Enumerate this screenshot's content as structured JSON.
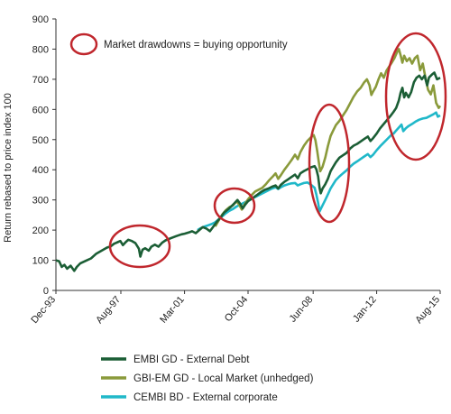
{
  "chart_data": {
    "type": "line",
    "ylabel": "Return rebased to price index 100",
    "ylim": [
      0,
      900
    ],
    "yticks": [
      0,
      100,
      200,
      300,
      400,
      500,
      600,
      700,
      800,
      900
    ],
    "xlim": [
      1993.92,
      2015.58
    ],
    "xticks": [
      {
        "label": "Dec-93",
        "value": 1993.92
      },
      {
        "label": "Aug-97",
        "value": 1997.58
      },
      {
        "label": "Mar-01",
        "value": 2001.17
      },
      {
        "label": "Oct-04",
        "value": 2004.75
      },
      {
        "label": "Jun-08",
        "value": 2008.42
      },
      {
        "label": "Jan-12",
        "value": 2012.0
      },
      {
        "label": "Aug-15",
        "value": 2015.58
      }
    ],
    "grid": false,
    "legend_position": "bottom",
    "series": [
      {
        "name": "EMBI GD - External Debt",
        "color": "#1b5e35",
        "points": [
          [
            1993.92,
            100
          ],
          [
            1994.1,
            97
          ],
          [
            1994.25,
            78
          ],
          [
            1994.4,
            85
          ],
          [
            1994.55,
            72
          ],
          [
            1994.75,
            82
          ],
          [
            1994.95,
            65
          ],
          [
            1995.1,
            78
          ],
          [
            1995.3,
            90
          ],
          [
            1995.6,
            98
          ],
          [
            1995.9,
            106
          ],
          [
            1996.2,
            122
          ],
          [
            1996.5,
            132
          ],
          [
            1996.8,
            142
          ],
          [
            1997.0,
            146
          ],
          [
            1997.2,
            155
          ],
          [
            1997.4,
            160
          ],
          [
            1997.55,
            164
          ],
          [
            1997.7,
            150
          ],
          [
            1997.85,
            160
          ],
          [
            1998.0,
            168
          ],
          [
            1998.2,
            164
          ],
          [
            1998.4,
            157
          ],
          [
            1998.6,
            138
          ],
          [
            1998.68,
            112
          ],
          [
            1998.8,
            135
          ],
          [
            1998.95,
            140
          ],
          [
            1999.15,
            132
          ],
          [
            1999.3,
            145
          ],
          [
            1999.5,
            152
          ],
          [
            1999.7,
            145
          ],
          [
            1999.9,
            158
          ],
          [
            2000.1,
            166
          ],
          [
            2000.4,
            173
          ],
          [
            2000.7,
            180
          ],
          [
            2001.0,
            186
          ],
          [
            2001.17,
            188
          ],
          [
            2001.4,
            192
          ],
          [
            2001.6,
            196
          ],
          [
            2001.8,
            190
          ],
          [
            2002.0,
            200
          ],
          [
            2002.2,
            210
          ],
          [
            2002.4,
            205
          ],
          [
            2002.6,
            196
          ],
          [
            2002.8,
            212
          ],
          [
            2003.0,
            228
          ],
          [
            2003.2,
            242
          ],
          [
            2003.4,
            258
          ],
          [
            2003.6,
            268
          ],
          [
            2003.8,
            278
          ],
          [
            2004.0,
            290
          ],
          [
            2004.15,
            300
          ],
          [
            2004.3,
            288
          ],
          [
            2004.45,
            272
          ],
          [
            2004.6,
            285
          ],
          [
            2004.75,
            296
          ],
          [
            2004.9,
            302
          ],
          [
            2005.1,
            310
          ],
          [
            2005.3,
            318
          ],
          [
            2005.5,
            327
          ],
          [
            2005.7,
            334
          ],
          [
            2005.9,
            338
          ],
          [
            2006.1,
            344
          ],
          [
            2006.3,
            348
          ],
          [
            2006.45,
            338
          ],
          [
            2006.6,
            350
          ],
          [
            2006.8,
            360
          ],
          [
            2007.0,
            368
          ],
          [
            2007.2,
            376
          ],
          [
            2007.4,
            384
          ],
          [
            2007.55,
            372
          ],
          [
            2007.7,
            388
          ],
          [
            2007.9,
            396
          ],
          [
            2008.1,
            402
          ],
          [
            2008.3,
            408
          ],
          [
            2008.5,
            412
          ],
          [
            2008.6,
            402
          ],
          [
            2008.7,
            378
          ],
          [
            2008.78,
            340
          ],
          [
            2008.85,
            322
          ],
          [
            2008.95,
            338
          ],
          [
            2009.1,
            352
          ],
          [
            2009.25,
            370
          ],
          [
            2009.4,
            395
          ],
          [
            2009.55,
            410
          ],
          [
            2009.7,
            425
          ],
          [
            2009.9,
            440
          ],
          [
            2010.1,
            448
          ],
          [
            2010.3,
            456
          ],
          [
            2010.5,
            470
          ],
          [
            2010.7,
            480
          ],
          [
            2010.9,
            486
          ],
          [
            2011.1,
            494
          ],
          [
            2011.3,
            502
          ],
          [
            2011.5,
            510
          ],
          [
            2011.65,
            495
          ],
          [
            2011.8,
            505
          ],
          [
            2012.0,
            520
          ],
          [
            2012.2,
            538
          ],
          [
            2012.4,
            552
          ],
          [
            2012.6,
            566
          ],
          [
            2012.8,
            580
          ],
          [
            2012.95,
            592
          ],
          [
            2013.1,
            605
          ],
          [
            2013.25,
            630
          ],
          [
            2013.35,
            655
          ],
          [
            2013.45,
            672
          ],
          [
            2013.55,
            640
          ],
          [
            2013.65,
            655
          ],
          [
            2013.8,
            640
          ],
          [
            2013.95,
            658
          ],
          [
            2014.1,
            690
          ],
          [
            2014.25,
            705
          ],
          [
            2014.4,
            712
          ],
          [
            2014.55,
            700
          ],
          [
            2014.7,
            712
          ],
          [
            2014.85,
            680
          ],
          [
            2014.95,
            706
          ],
          [
            2015.1,
            715
          ],
          [
            2015.25,
            722
          ],
          [
            2015.4,
            700
          ],
          [
            2015.58,
            705
          ]
        ]
      },
      {
        "name": "GBI-EM GD - Local Market (unhedged)",
        "color": "#8a9a3b",
        "points": [
          [
            2002.9,
            212
          ],
          [
            2003.1,
            232
          ],
          [
            2003.3,
            252
          ],
          [
            2003.5,
            266
          ],
          [
            2003.7,
            276
          ],
          [
            2003.9,
            282
          ],
          [
            2004.1,
            296
          ],
          [
            2004.25,
            284
          ],
          [
            2004.4,
            268
          ],
          [
            2004.55,
            285
          ],
          [
            2004.75,
            302
          ],
          [
            2004.95,
            316
          ],
          [
            2005.15,
            328
          ],
          [
            2005.35,
            334
          ],
          [
            2005.55,
            340
          ],
          [
            2005.75,
            352
          ],
          [
            2005.95,
            366
          ],
          [
            2006.15,
            378
          ],
          [
            2006.3,
            388
          ],
          [
            2006.45,
            370
          ],
          [
            2006.6,
            382
          ],
          [
            2006.8,
            400
          ],
          [
            2007.0,
            416
          ],
          [
            2007.2,
            432
          ],
          [
            2007.4,
            450
          ],
          [
            2007.55,
            435
          ],
          [
            2007.7,
            458
          ],
          [
            2007.9,
            480
          ],
          [
            2008.1,
            496
          ],
          [
            2008.3,
            508
          ],
          [
            2008.45,
            515
          ],
          [
            2008.55,
            498
          ],
          [
            2008.65,
            462
          ],
          [
            2008.75,
            420
          ],
          [
            2008.82,
            395
          ],
          [
            2008.95,
            410
          ],
          [
            2009.1,
            440
          ],
          [
            2009.25,
            478
          ],
          [
            2009.4,
            512
          ],
          [
            2009.55,
            530
          ],
          [
            2009.7,
            548
          ],
          [
            2009.9,
            562
          ],
          [
            2010.1,
            580
          ],
          [
            2010.3,
            598
          ],
          [
            2010.5,
            620
          ],
          [
            2010.7,
            642
          ],
          [
            2010.9,
            660
          ],
          [
            2011.1,
            672
          ],
          [
            2011.3,
            690
          ],
          [
            2011.45,
            700
          ],
          [
            2011.6,
            680
          ],
          [
            2011.7,
            648
          ],
          [
            2011.8,
            660
          ],
          [
            2011.95,
            675
          ],
          [
            2012.1,
            700
          ],
          [
            2012.25,
            720
          ],
          [
            2012.4,
            705
          ],
          [
            2012.55,
            728
          ],
          [
            2012.7,
            742
          ],
          [
            2012.85,
            755
          ],
          [
            2013.0,
            770
          ],
          [
            2013.15,
            790
          ],
          [
            2013.25,
            800
          ],
          [
            2013.35,
            780
          ],
          [
            2013.45,
            755
          ],
          [
            2013.55,
            778
          ],
          [
            2013.7,
            760
          ],
          [
            2013.85,
            770
          ],
          [
            2014.0,
            752
          ],
          [
            2014.15,
            770
          ],
          [
            2014.3,
            778
          ],
          [
            2014.45,
            730
          ],
          [
            2014.6,
            752
          ],
          [
            2014.75,
            705
          ],
          [
            2014.9,
            665
          ],
          [
            2015.05,
            650
          ],
          [
            2015.2,
            680
          ],
          [
            2015.35,
            622
          ],
          [
            2015.5,
            605
          ],
          [
            2015.58,
            612
          ]
        ]
      },
      {
        "name": "CEMBI BD - External corporate",
        "color": "#20b8c9",
        "points": [
          [
            2001.9,
            200
          ],
          [
            2002.1,
            207
          ],
          [
            2002.3,
            212
          ],
          [
            2002.5,
            216
          ],
          [
            2002.7,
            220
          ],
          [
            2002.9,
            226
          ],
          [
            2003.1,
            236
          ],
          [
            2003.3,
            246
          ],
          [
            2003.5,
            256
          ],
          [
            2003.7,
            264
          ],
          [
            2003.9,
            270
          ],
          [
            2004.1,
            278
          ],
          [
            2004.3,
            284
          ],
          [
            2004.5,
            290
          ],
          [
            2004.7,
            296
          ],
          [
            2004.9,
            302
          ],
          [
            2005.1,
            308
          ],
          [
            2005.3,
            314
          ],
          [
            2005.5,
            320
          ],
          [
            2005.7,
            326
          ],
          [
            2005.9,
            332
          ],
          [
            2006.1,
            338
          ],
          [
            2006.3,
            342
          ],
          [
            2006.45,
            336
          ],
          [
            2006.6,
            342
          ],
          [
            2006.8,
            348
          ],
          [
            2007.0,
            352
          ],
          [
            2007.2,
            355
          ],
          [
            2007.4,
            356
          ],
          [
            2007.55,
            348
          ],
          [
            2007.7,
            352
          ],
          [
            2007.9,
            356
          ],
          [
            2008.1,
            358
          ],
          [
            2008.3,
            350
          ],
          [
            2008.5,
            340
          ],
          [
            2008.6,
            318
          ],
          [
            2008.7,
            290
          ],
          [
            2008.78,
            262
          ],
          [
            2008.85,
            270
          ],
          [
            2008.95,
            282
          ],
          [
            2009.1,
            300
          ],
          [
            2009.25,
            318
          ],
          [
            2009.4,
            338
          ],
          [
            2009.55,
            352
          ],
          [
            2009.7,
            366
          ],
          [
            2009.9,
            378
          ],
          [
            2010.1,
            388
          ],
          [
            2010.3,
            398
          ],
          [
            2010.5,
            410
          ],
          [
            2010.7,
            420
          ],
          [
            2010.9,
            428
          ],
          [
            2011.1,
            436
          ],
          [
            2011.3,
            444
          ],
          [
            2011.5,
            452
          ],
          [
            2011.65,
            442
          ],
          [
            2011.8,
            450
          ],
          [
            2012.0,
            465
          ],
          [
            2012.2,
            478
          ],
          [
            2012.4,
            490
          ],
          [
            2012.6,
            502
          ],
          [
            2012.8,
            514
          ],
          [
            2012.95,
            520
          ],
          [
            2013.1,
            530
          ],
          [
            2013.25,
            540
          ],
          [
            2013.4,
            550
          ],
          [
            2013.5,
            528
          ],
          [
            2013.65,
            538
          ],
          [
            2013.8,
            545
          ],
          [
            2014.0,
            552
          ],
          [
            2014.2,
            560
          ],
          [
            2014.4,
            566
          ],
          [
            2014.6,
            570
          ],
          [
            2014.8,
            572
          ],
          [
            2015.0,
            578
          ],
          [
            2015.2,
            584
          ],
          [
            2015.35,
            590
          ],
          [
            2015.45,
            576
          ],
          [
            2015.58,
            580
          ]
        ]
      }
    ],
    "annotation": {
      "label": "Market drawdowns = buying opportunity",
      "highlight_color": "#c0272d"
    }
  }
}
